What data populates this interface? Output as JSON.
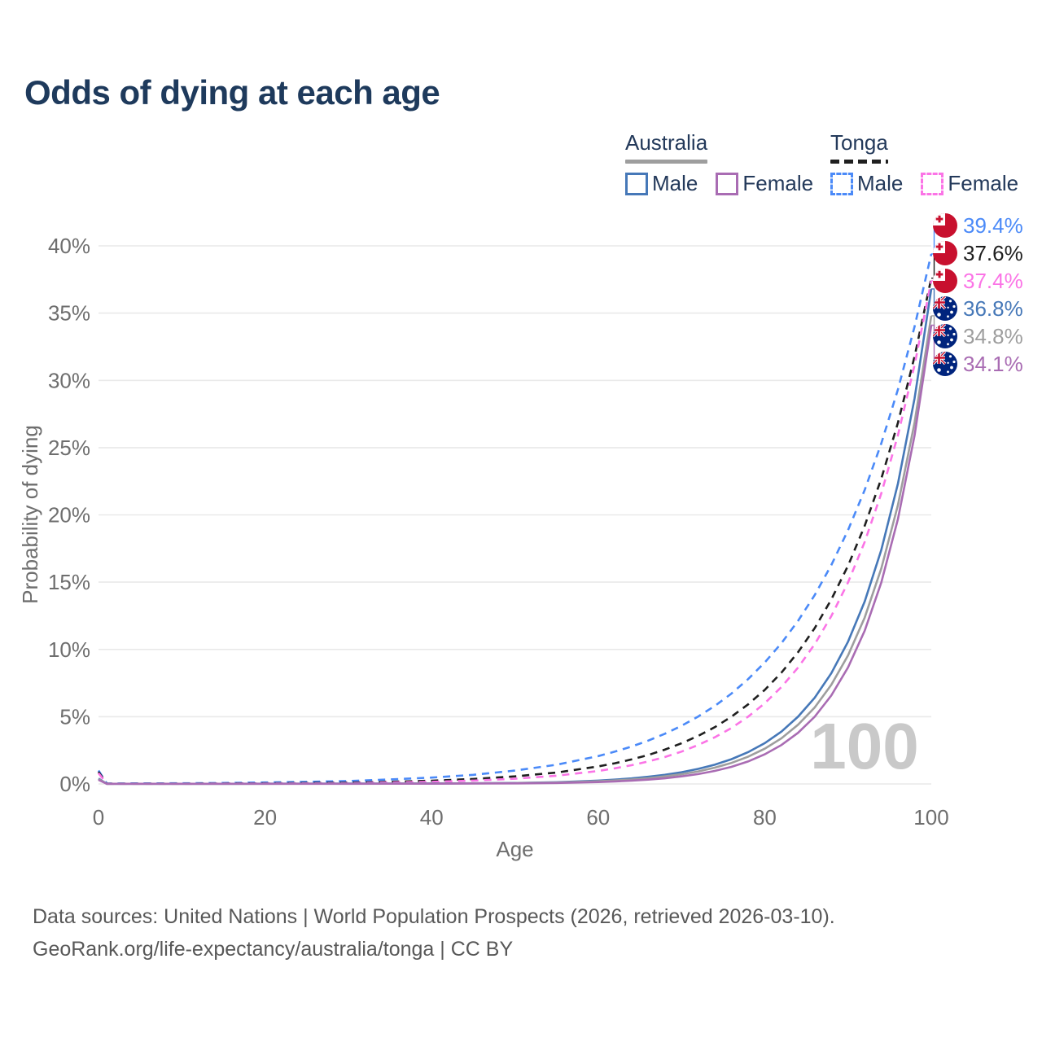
{
  "title": "Odds of dying at each age",
  "colors": {
    "title": "#1e3a5c",
    "legend_text": "#23395a",
    "axis_text": "#6e6e6e",
    "grid": "#e9e9e9",
    "watermark": "#c9c9c9",
    "footer_text": "#585858"
  },
  "legend": {
    "groups": [
      {
        "label": "Australia",
        "underline_color": "#9e9e9e",
        "underline_style": "solid",
        "items": [
          {
            "label": "Male",
            "color": "#4678b8",
            "dashed": false
          },
          {
            "label": "Female",
            "color": "#a96cb3",
            "dashed": false
          }
        ]
      },
      {
        "label": "Tonga",
        "underline_color": "#1f1f1f",
        "underline_style": "dashed",
        "items": [
          {
            "label": "Male",
            "color": "#4b8af8",
            "dashed": true
          },
          {
            "label": "Female",
            "color": "#fb74e6",
            "dashed": true
          }
        ]
      }
    ]
  },
  "icons": {
    "tonga_flag": {
      "red": "#C8102E",
      "white": "#ffffff"
    },
    "australia_flag": {
      "blue": "#00247D",
      "red": "#C8102E",
      "white": "#ffffff"
    }
  },
  "chart_data": {
    "type": "line",
    "title": "Odds of dying at each age",
    "xlabel": "Age",
    "ylabel": "Probability of dying",
    "xlim": [
      0,
      100
    ],
    "ylim": [
      0,
      40
    ],
    "x_tick_values": [
      0,
      20,
      40,
      60,
      80,
      100
    ],
    "x_tick_labels": [
      "0",
      "20",
      "40",
      "60",
      "80",
      "100"
    ],
    "y_tick_values": [
      0,
      5,
      10,
      15,
      20,
      25,
      30,
      35,
      40
    ],
    "y_tick_labels": [
      "0%",
      "5%",
      "10%",
      "15%",
      "20%",
      "25%",
      "30%",
      "35%",
      "40%"
    ],
    "grid": "horizontal",
    "legend_position": "top-right",
    "watermark": "100",
    "x": [
      0,
      1,
      5,
      10,
      15,
      20,
      25,
      30,
      35,
      40,
      45,
      50,
      55,
      60,
      62,
      64,
      66,
      68,
      70,
      72,
      74,
      76,
      78,
      80,
      82,
      84,
      86,
      88,
      90,
      92,
      94,
      96,
      98,
      100
    ],
    "series": [
      {
        "id": "tonga-male",
        "name": "Tonga Male",
        "country": "Tonga",
        "sex": "male",
        "color": "#4b8af8",
        "dashed": true,
        "flag": "tonga",
        "end_label": "39.4%",
        "values": [
          1.0,
          0.03,
          0.04,
          0.05,
          0.07,
          0.11,
          0.16,
          0.22,
          0.33,
          0.47,
          0.68,
          0.99,
          1.43,
          2.07,
          2.4,
          2.78,
          3.22,
          3.73,
          4.32,
          5.01,
          5.8,
          6.72,
          7.79,
          9.03,
          10.46,
          12.12,
          14.04,
          16.27,
          18.86,
          21.85,
          25.32,
          29.34,
          34.0,
          39.4
        ]
      },
      {
        "id": "tonga-both",
        "name": "Tonga Both sexes",
        "country": "Tonga",
        "sex": "both",
        "color": "#1f1f1f",
        "dashed": true,
        "flag": "tonga",
        "end_label": "37.6%",
        "values": [
          0.9,
          0.02,
          0.02,
          0.02,
          0.03,
          0.05,
          0.07,
          0.1,
          0.16,
          0.24,
          0.37,
          0.56,
          0.85,
          1.3,
          1.54,
          1.82,
          2.15,
          2.55,
          3.02,
          3.57,
          4.22,
          5.0,
          5.91,
          6.99,
          8.27,
          9.79,
          11.58,
          13.71,
          16.22,
          19.19,
          22.7,
          26.86,
          31.78,
          37.6
        ]
      },
      {
        "id": "tonga-female",
        "name": "Tonga Female",
        "country": "Tonga",
        "sex": "female",
        "color": "#fb74e6",
        "dashed": true,
        "flag": "tonga",
        "end_label": "37.4%",
        "values": [
          0.8,
          0.01,
          0.01,
          0.01,
          0.02,
          0.03,
          0.04,
          0.06,
          0.1,
          0.16,
          0.25,
          0.39,
          0.61,
          0.96,
          1.16,
          1.39,
          1.67,
          2.0,
          2.4,
          2.89,
          3.47,
          4.16,
          5.0,
          6.0,
          7.21,
          8.65,
          10.39,
          12.48,
          14.98,
          17.99,
          21.6,
          25.94,
          31.15,
          37.4
        ]
      },
      {
        "id": "australia-male",
        "name": "Australia Male",
        "country": "Australia",
        "sex": "male",
        "color": "#4678b8",
        "dashed": false,
        "flag": "australia",
        "end_label": "36.8%",
        "values": [
          0.4,
          0.01,
          0.01,
          0.01,
          0.01,
          0.02,
          0.02,
          0.03,
          0.03,
          0.04,
          0.05,
          0.07,
          0.13,
          0.25,
          0.32,
          0.41,
          0.53,
          0.68,
          0.87,
          1.12,
          1.43,
          1.84,
          2.36,
          3.03,
          3.89,
          5.0,
          6.41,
          8.23,
          10.57,
          13.56,
          17.4,
          22.34,
          28.67,
          36.8
        ]
      },
      {
        "id": "australia-both",
        "name": "Australia Both sexes",
        "country": "Australia",
        "sex": "both",
        "color": "#9e9e9e",
        "dashed": false,
        "flag": "australia",
        "end_label": "34.8%",
        "values": [
          0.35,
          0.01,
          0.01,
          0.01,
          0.01,
          0.01,
          0.02,
          0.02,
          0.02,
          0.03,
          0.04,
          0.06,
          0.1,
          0.2,
          0.26,
          0.33,
          0.43,
          0.56,
          0.72,
          0.93,
          1.21,
          1.56,
          2.02,
          2.62,
          3.39,
          4.4,
          5.69,
          7.37,
          9.55,
          12.37,
          16.02,
          20.75,
          26.87,
          34.8
        ]
      },
      {
        "id": "australia-female",
        "name": "Australia Female",
        "country": "Australia",
        "sex": "female",
        "color": "#a96cb3",
        "dashed": false,
        "flag": "australia",
        "end_label": "34.1%",
        "values": [
          0.3,
          0.01,
          0.01,
          0.01,
          0.01,
          0.01,
          0.01,
          0.01,
          0.02,
          0.02,
          0.03,
          0.04,
          0.07,
          0.14,
          0.19,
          0.25,
          0.32,
          0.42,
          0.56,
          0.73,
          0.97,
          1.27,
          1.67,
          2.2,
          2.89,
          3.8,
          5.0,
          6.58,
          8.66,
          11.39,
          14.98,
          19.71,
          25.92,
          34.1
        ]
      }
    ]
  },
  "footer": {
    "line1": "Data sources: United Nations | World Population Prospects (2026, retrieved 2026-03-10).",
    "line2": "GeoRank.org/life-expectancy/australia/tonga | CC BY"
  }
}
